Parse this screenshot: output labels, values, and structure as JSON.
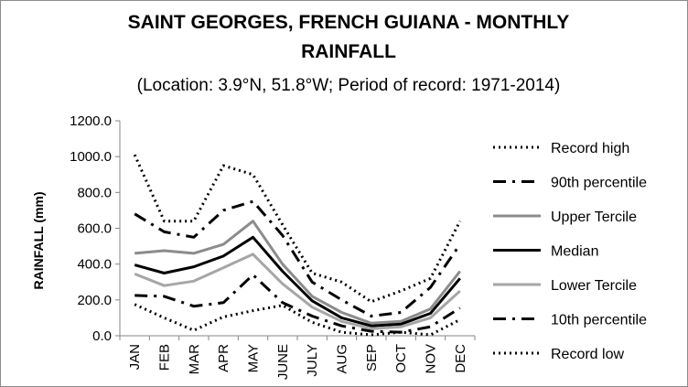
{
  "chart_data": {
    "type": "line",
    "title_line1": "SAINT GEORGES, FRENCH GUIANA - MONTHLY",
    "title_line2": "RAINFALL",
    "subtitle": "(Location: 3.9°N, 51.8°W; Period of record: 1971-2014)",
    "xlabel": "",
    "ylabel": "RAINFALL (mm)",
    "ylim": [
      0,
      1200
    ],
    "yticks": [
      "0.0",
      "200.0",
      "400.0",
      "600.0",
      "800.0",
      "1000.0",
      "1200.0"
    ],
    "grid": false,
    "legend_position": "right",
    "categories": [
      "JAN",
      "FEB",
      "MAR",
      "APR",
      "MAY",
      "JUNE",
      "JULY",
      "AUG",
      "SEP",
      "OCT",
      "NOV",
      "DEC"
    ],
    "series": [
      {
        "name": "Record high",
        "color": "#000000",
        "style": "dotted",
        "values": [
          1010,
          640,
          640,
          950,
          900,
          620,
          350,
          300,
          190,
          250,
          320,
          640
        ]
      },
      {
        "name": "90th percentile",
        "color": "#000000",
        "style": "dashdot",
        "values": [
          680,
          580,
          550,
          700,
          750,
          560,
          300,
          200,
          110,
          130,
          270,
          510
        ]
      },
      {
        "name": "Upper Tercile",
        "color": "#8c8c8c",
        "style": "solid",
        "values": [
          460,
          475,
          460,
          510,
          640,
          400,
          220,
          130,
          70,
          80,
          150,
          360
        ]
      },
      {
        "name": "Median",
        "color": "#000000",
        "style": "solid",
        "values": [
          395,
          350,
          385,
          445,
          550,
          360,
          195,
          100,
          55,
          65,
          125,
          320
        ]
      },
      {
        "name": "Lower Tercile",
        "color": "#a6a6a6",
        "style": "solid",
        "values": [
          345,
          280,
          305,
          380,
          455,
          290,
          160,
          80,
          40,
          50,
          100,
          250
        ]
      },
      {
        "name": "10th percentile",
        "color": "#000000",
        "style": "dashdot",
        "values": [
          225,
          220,
          165,
          185,
          340,
          185,
          110,
          55,
          25,
          20,
          50,
          155
        ]
      },
      {
        "name": "Record low",
        "color": "#000000",
        "style": "dotted",
        "values": [
          175,
          100,
          30,
          105,
          140,
          170,
          75,
          20,
          5,
          20,
          5,
          90
        ]
      }
    ]
  }
}
